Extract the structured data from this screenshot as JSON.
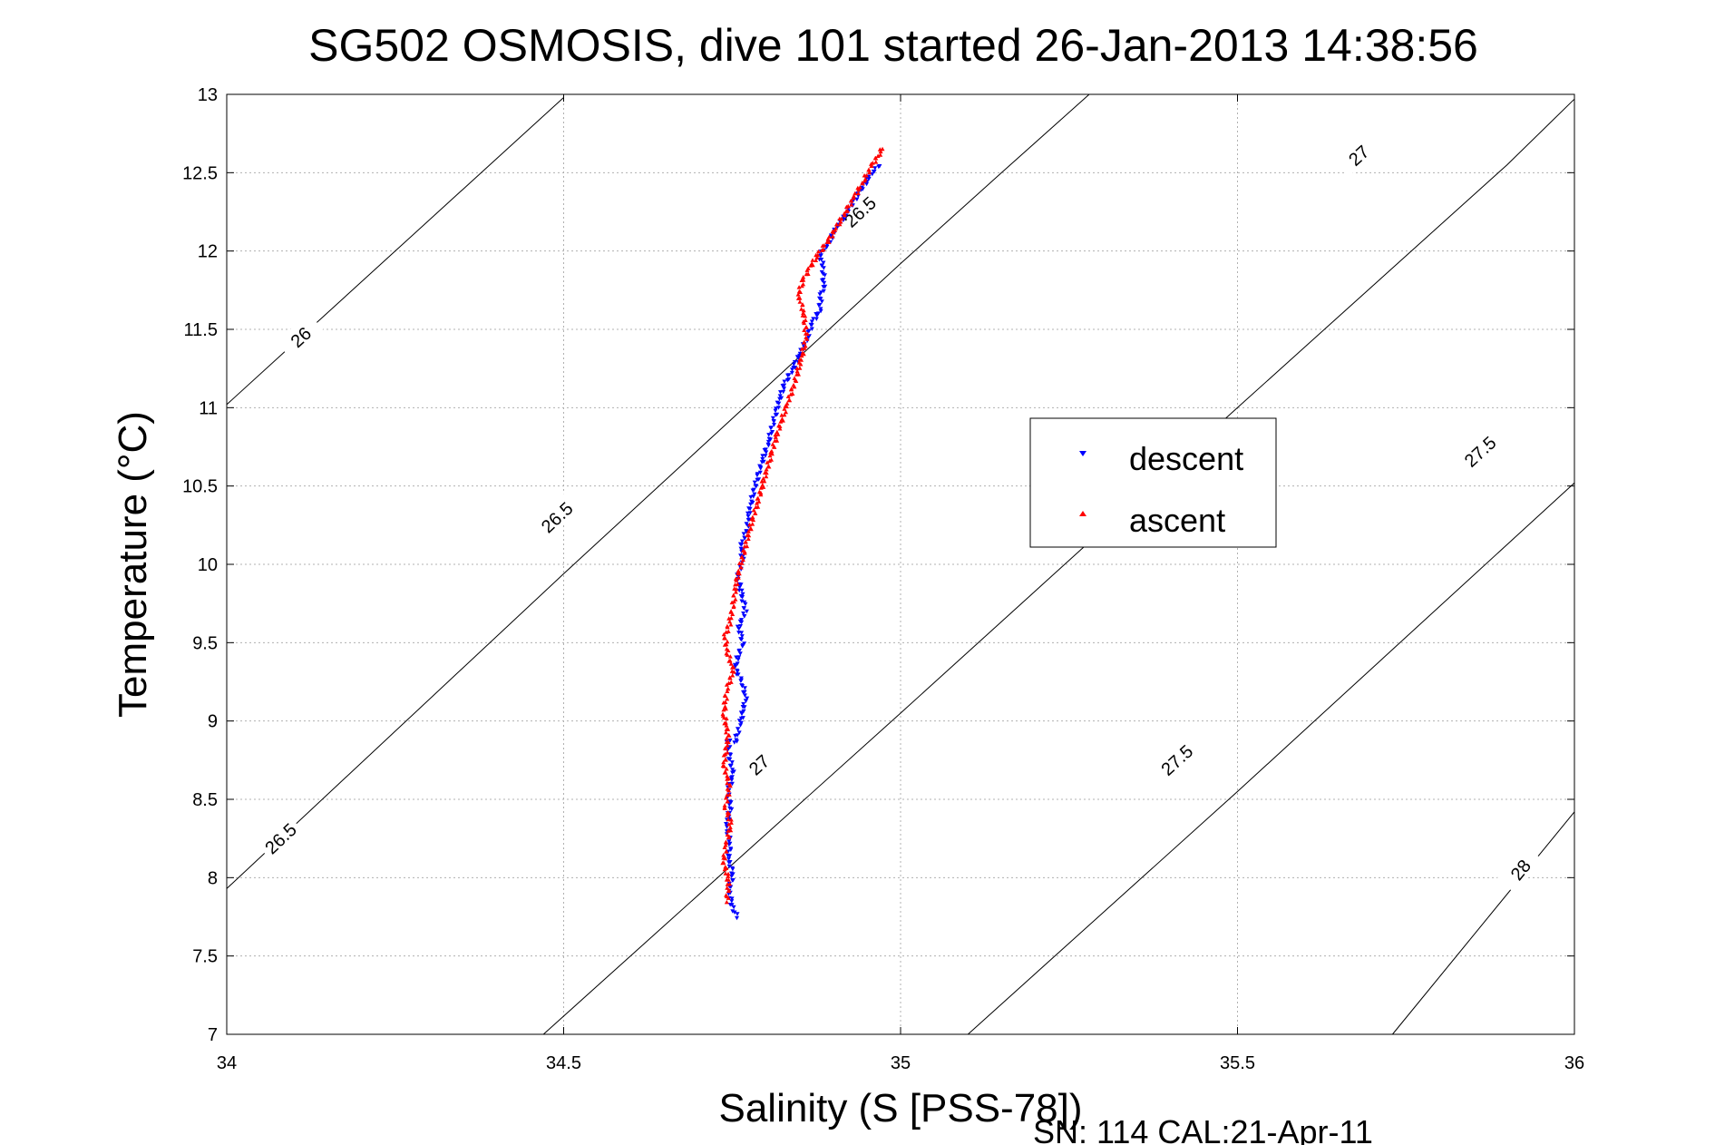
{
  "chart_data": {
    "type": "scatter",
    "title": "SG502 OSMOSIS, dive 101 started 26-Jan-2013 14:38:56",
    "xlabel": "Salinity (S [PSS-78])",
    "ylabel": "Temperature (°C)",
    "footer": "SN: 114  CAL:21-Apr-11",
    "xlim": [
      34,
      36
    ],
    "ylim": [
      7,
      13
    ],
    "grid": true,
    "legend_position": "right-center",
    "x_ticks": [
      "34",
      "34.5",
      "35",
      "35.5",
      "36"
    ],
    "y_ticks": [
      "7",
      "7.5",
      "8",
      "8.5",
      "9",
      "9.5",
      "10",
      "10.5",
      "11",
      "11.5",
      "12",
      "12.5",
      "13"
    ],
    "series": [
      {
        "name": "descent",
        "color": "#0000ff",
        "marker": "triangle-down",
        "x": [
          34.757,
          34.75,
          34.745,
          34.752,
          34.744,
          34.748,
          34.741,
          34.748,
          34.743,
          34.752,
          34.746,
          34.744,
          34.755,
          34.763,
          34.77,
          34.765,
          34.755,
          34.758,
          34.766,
          34.76,
          34.77,
          34.765,
          34.758,
          34.766,
          34.763,
          34.772,
          34.776,
          34.783,
          34.792,
          34.804,
          34.812,
          34.82,
          34.828,
          34.84,
          34.852,
          34.862,
          34.87,
          34.88,
          34.882,
          34.886,
          34.885,
          34.88,
          34.895,
          34.9,
          34.917,
          34.935,
          34.955,
          34.97
        ],
        "y": [
          7.75,
          7.82,
          7.92,
          8.02,
          8.12,
          8.22,
          8.32,
          8.45,
          8.55,
          8.65,
          8.78,
          8.87,
          8.87,
          9.0,
          9.15,
          9.25,
          9.33,
          9.4,
          9.5,
          9.6,
          9.7,
          9.8,
          9.92,
          10.02,
          10.12,
          10.22,
          10.35,
          10.48,
          10.62,
          10.78,
          10.92,
          11.05,
          11.15,
          11.25,
          11.35,
          11.45,
          11.55,
          11.62,
          11.72,
          11.78,
          11.9,
          11.98,
          12.05,
          12.12,
          12.22,
          12.35,
          12.48,
          12.56
        ]
      },
      {
        "name": "ascent",
        "color": "#ff0000",
        "marker": "triangle-up",
        "x": [
          34.742,
          34.745,
          34.737,
          34.742,
          34.748,
          34.74,
          34.746,
          34.738,
          34.744,
          34.738,
          34.742,
          34.752,
          34.742,
          34.74,
          34.746,
          34.752,
          34.756,
          34.763,
          34.77,
          34.778,
          34.788,
          34.798,
          34.808,
          34.818,
          34.83,
          34.842,
          34.852,
          34.86,
          34.856,
          34.848,
          34.856,
          34.866,
          34.878,
          34.89,
          34.905,
          34.918,
          34.932,
          34.945,
          34.958,
          34.968,
          34.975
        ],
        "y": [
          7.85,
          7.98,
          8.1,
          8.22,
          8.35,
          8.45,
          8.58,
          8.72,
          8.9,
          9.05,
          9.2,
          9.32,
          9.45,
          9.55,
          9.62,
          9.75,
          9.88,
          10.0,
          10.12,
          10.25,
          10.4,
          10.55,
          10.7,
          10.85,
          11.0,
          11.15,
          11.3,
          11.45,
          11.62,
          11.72,
          11.82,
          11.9,
          11.98,
          12.05,
          12.15,
          12.25,
          12.35,
          12.45,
          12.55,
          12.62,
          12.67
        ]
      }
    ],
    "density_contours": [
      {
        "level": "26",
        "path": [
          [
            34.0,
            11.02
          ],
          [
            34.5,
            12.98
          ]
        ],
        "labels": [
          {
            "text": "26",
            "x": 34.11,
            "y": 11.45
          }
        ]
      },
      {
        "level": "26.5",
        "path": [
          [
            34.0,
            7.93
          ],
          [
            34.5,
            9.94
          ],
          [
            35.0,
            11.92
          ],
          [
            35.15,
            12.5
          ],
          [
            35.28,
            13.0
          ]
        ],
        "labels": [
          {
            "text": "26.5",
            "x": 34.08,
            "y": 8.25
          },
          {
            "text": "26.5",
            "x": 34.49,
            "y": 10.3
          },
          {
            "text": "26.5",
            "x": 34.94,
            "y": 12.25
          }
        ]
      },
      {
        "level": "27",
        "path": [
          [
            34.47,
            7.0
          ],
          [
            35.0,
            9.05
          ],
          [
            35.5,
            11.0
          ],
          [
            35.9,
            12.55
          ],
          [
            36.0,
            12.97
          ]
        ],
        "labels": [
          {
            "text": "27",
            "x": 34.79,
            "y": 8.72
          },
          {
            "text": "27",
            "x": 35.68,
            "y": 12.61
          }
        ]
      },
      {
        "level": "27.5",
        "path": [
          [
            35.1,
            7.0
          ],
          [
            35.5,
            8.55
          ],
          [
            36.0,
            10.52
          ]
        ],
        "labels": [
          {
            "text": "27.5",
            "x": 35.41,
            "y": 8.75
          },
          {
            "text": "27.5",
            "x": 35.86,
            "y": 10.72
          }
        ]
      },
      {
        "level": "28",
        "path": [
          [
            35.73,
            7.0
          ],
          [
            36.0,
            8.42
          ]
        ],
        "labels": [
          {
            "text": "28",
            "x": 35.92,
            "y": 8.05
          }
        ]
      }
    ]
  }
}
